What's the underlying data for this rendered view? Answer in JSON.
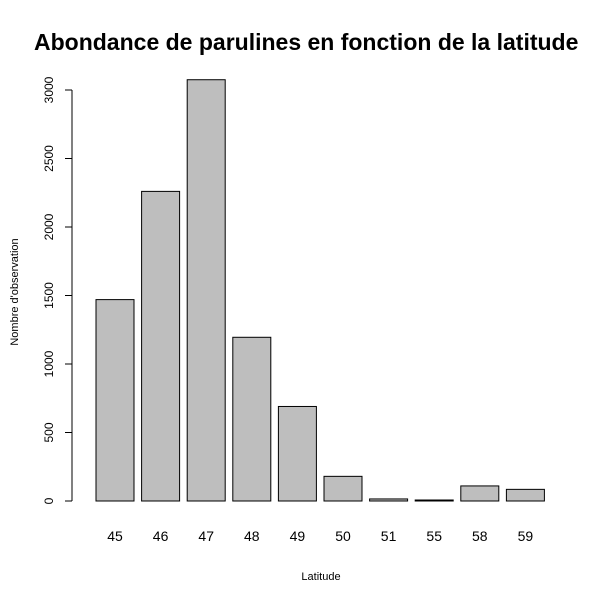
{
  "chart_data": {
    "type": "bar",
    "title": "Abondance de parulines en fonction de la latitude",
    "xlabel": "Latitude",
    "ylabel": "Nombre d'observation",
    "categories": [
      "45",
      "46",
      "47",
      "48",
      "49",
      "50",
      "51",
      "55",
      "58",
      "59"
    ],
    "values": [
      1470,
      2260,
      3075,
      1195,
      690,
      180,
      15,
      5,
      110,
      85
    ],
    "ylim": [
      0,
      3000
    ],
    "yticks": [
      "0",
      "500",
      "1000",
      "1500",
      "2000",
      "2500",
      "3000"
    ],
    "grid": false,
    "bar_color": "#bebebe",
    "border_color": "#000000"
  }
}
